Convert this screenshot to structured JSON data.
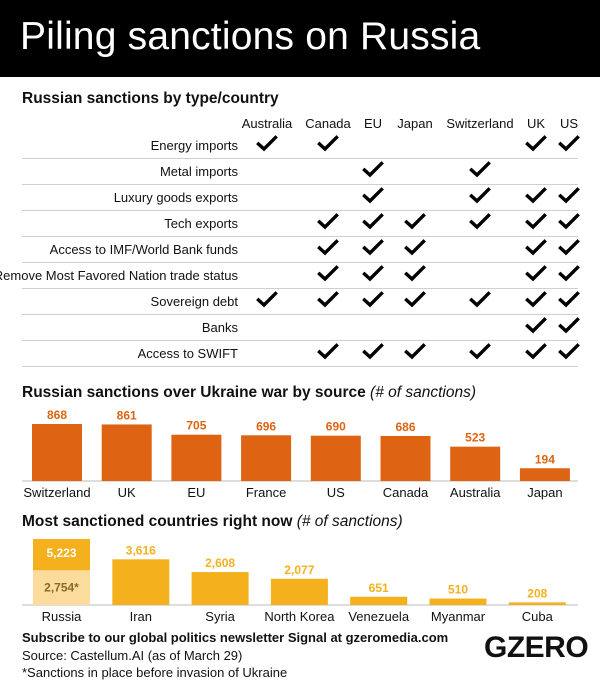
{
  "title": "Piling sanctions on Russia",
  "table": {
    "title": "Russian sanctions by type/country",
    "columns": [
      "Australia",
      "Canada",
      "EU",
      "Japan",
      "Switzerland",
      "UK",
      "US"
    ],
    "rows": [
      {
        "label": "Energy imports",
        "checks": [
          true,
          true,
          false,
          false,
          false,
          true,
          true
        ]
      },
      {
        "label": "Metal imports",
        "checks": [
          false,
          false,
          true,
          false,
          true,
          false,
          false
        ]
      },
      {
        "label": "Luxury goods exports",
        "checks": [
          false,
          false,
          true,
          false,
          true,
          true,
          true
        ]
      },
      {
        "label": "Tech exports",
        "checks": [
          false,
          true,
          true,
          true,
          true,
          true,
          true
        ]
      },
      {
        "label": "Access to IMF/World Bank funds",
        "checks": [
          false,
          true,
          true,
          true,
          false,
          true,
          true
        ]
      },
      {
        "label": "Remove Most Favored Nation trade status",
        "checks": [
          false,
          true,
          true,
          true,
          false,
          true,
          true
        ]
      },
      {
        "label": "Sovereign debt",
        "checks": [
          true,
          true,
          true,
          true,
          true,
          true,
          true
        ]
      },
      {
        "label": "Banks",
        "checks": [
          false,
          false,
          false,
          false,
          false,
          true,
          true
        ]
      },
      {
        "label": "Access to SWIFT",
        "checks": [
          false,
          true,
          true,
          true,
          true,
          true,
          true
        ]
      }
    ]
  },
  "chart_data": [
    {
      "type": "bar",
      "title": "Russian sanctions over Ukraine war by source",
      "subtitle": "(# of sanctions)",
      "categories": [
        "Switzerland",
        "UK",
        "EU",
        "France",
        "US",
        "Canada",
        "Australia",
        "Japan"
      ],
      "values": [
        868,
        861,
        705,
        696,
        690,
        686,
        523,
        194
      ],
      "color": "#de6312",
      "label_color": "#de6312",
      "ylim": [
        0,
        868
      ]
    },
    {
      "type": "bar",
      "title": "Most sanctioned countries right now",
      "subtitle": "(# of sanctions)",
      "categories": [
        "Russia",
        "Iran",
        "Syria",
        "North Korea",
        "Venezuela",
        "Myanmar",
        "Cuba"
      ],
      "values": [
        5223,
        3616,
        2608,
        2077,
        651,
        510,
        208
      ],
      "value_labels": [
        "5,223",
        "3,616",
        "2,608",
        "2,077",
        "651",
        "510",
        "208"
      ],
      "stacked_base": {
        "category": "Russia",
        "value": 2754,
        "label": "2,754*"
      },
      "color": "#f5b01e",
      "base_color": "#fbdc9c",
      "ylim": [
        0,
        5223
      ]
    }
  ],
  "footer": {
    "subscribe": "Subscribe to our global politics newsletter Signal at gzeromedia.com",
    "source": "Source: Castellum.AI (as of March 29)",
    "note": "*Sanctions in place before invasion of Ukraine",
    "logo": "GZERO"
  }
}
